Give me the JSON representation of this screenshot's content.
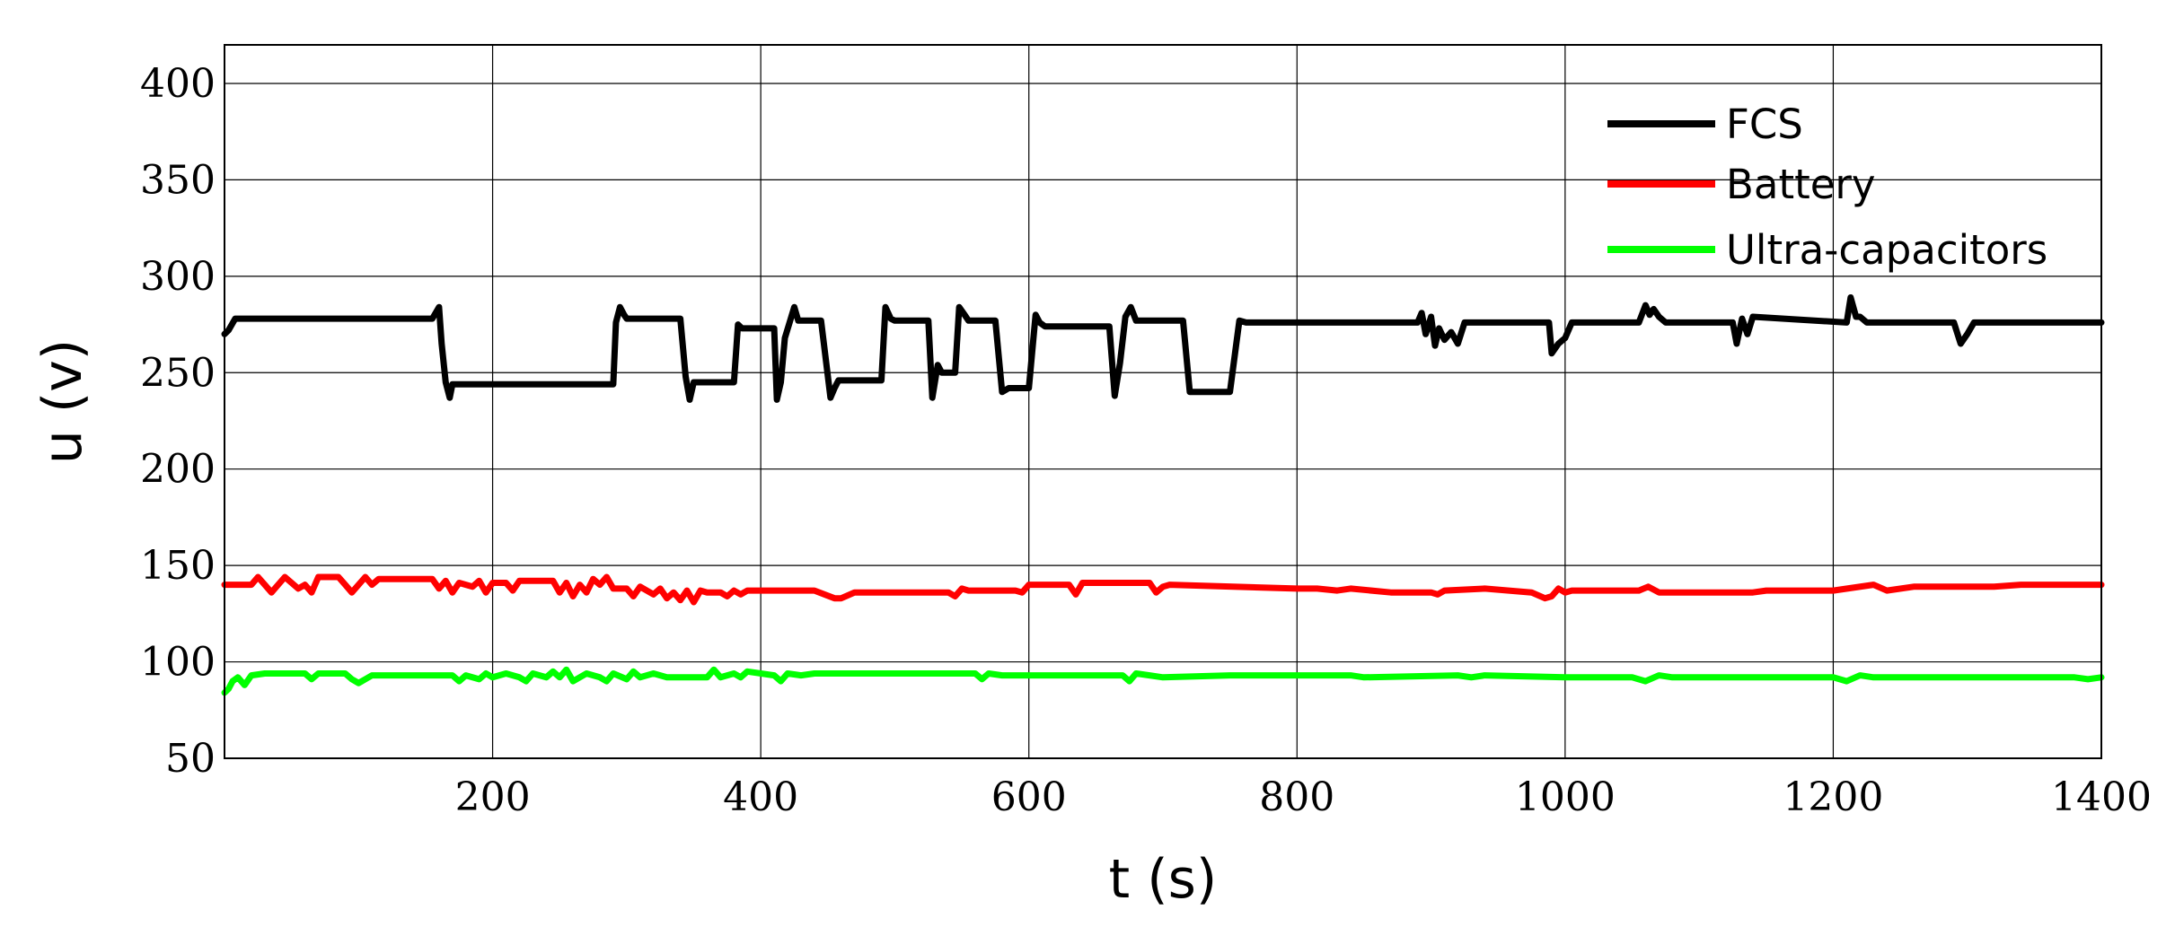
{
  "chart_data": {
    "type": "line",
    "title": "",
    "xlabel": "t (s)",
    "ylabel": "u (v)",
    "xlim": [
      0,
      1400
    ],
    "ylim": [
      50,
      420
    ],
    "x_ticks": [
      200,
      400,
      600,
      800,
      1000,
      1200,
      1400
    ],
    "y_ticks": [
      50,
      100,
      150,
      200,
      250,
      300,
      350,
      400
    ],
    "grid": true,
    "legend_position": "top-right",
    "series": [
      {
        "name": "FCS",
        "color": "#000000",
        "x": [
          0,
          3,
          8,
          155,
          160,
          162,
          165,
          168,
          170,
          290,
          292,
          295,
          298,
          300,
          340,
          344,
          347,
          350,
          380,
          383,
          386,
          410,
          412,
          415,
          418,
          425,
          428,
          445,
          452,
          455,
          458,
          490,
          493,
          497,
          500,
          525,
          528,
          532,
          535,
          545,
          548,
          552,
          555,
          575,
          580,
          585,
          600,
          605,
          608,
          612,
          660,
          664,
          668,
          672,
          676,
          680,
          715,
          720,
          725,
          750,
          757,
          762,
          890,
          893,
          896,
          900,
          903,
          906,
          910,
          915,
          920,
          925,
          988,
          990,
          995,
          1000,
          1005,
          1055,
          1060,
          1063,
          1066,
          1070,
          1075,
          1125,
          1128,
          1132,
          1136,
          1140,
          1210,
          1213,
          1217,
          1220,
          1225,
          1290,
          1295,
          1300,
          1305,
          1400
        ],
        "y": [
          270,
          272,
          278,
          278,
          284,
          265,
          245,
          237,
          244,
          244,
          276,
          284,
          280,
          278,
          278,
          248,
          236,
          245,
          245,
          275,
          273,
          273,
          236,
          245,
          268,
          284,
          277,
          277,
          237,
          242,
          246,
          246,
          284,
          278,
          277,
          277,
          237,
          254,
          250,
          250,
          284,
          280,
          277,
          277,
          240,
          242,
          242,
          280,
          276,
          274,
          274,
          238,
          255,
          279,
          284,
          277,
          277,
          240,
          240,
          240,
          277,
          276,
          276,
          281,
          270,
          279,
          264,
          273,
          267,
          271,
          265,
          276,
          276,
          260,
          265,
          268,
          276,
          276,
          285,
          280,
          283,
          279,
          276,
          276,
          265,
          278,
          270,
          279,
          276,
          289,
          279,
          279,
          276,
          276,
          265,
          270,
          276,
          276
        ]
      },
      {
        "name": "Battery",
        "color": "#ff0000",
        "x": [
          0,
          5,
          20,
          25,
          30,
          35,
          40,
          45,
          55,
          60,
          65,
          70,
          85,
          90,
          95,
          105,
          110,
          115,
          155,
          160,
          165,
          170,
          175,
          185,
          190,
          195,
          200,
          210,
          215,
          220,
          245,
          250,
          255,
          260,
          265,
          270,
          275,
          280,
          285,
          290,
          300,
          305,
          310,
          320,
          325,
          330,
          335,
          340,
          345,
          350,
          355,
          360,
          370,
          375,
          380,
          385,
          390,
          440,
          455,
          460,
          470,
          540,
          545,
          550,
          555,
          590,
          595,
          600,
          630,
          635,
          640,
          690,
          695,
          700,
          705,
          800,
          815,
          830,
          840,
          870,
          900,
          905,
          910,
          940,
          975,
          985,
          990,
          995,
          1000,
          1005,
          1055,
          1062,
          1070,
          1100,
          1140,
          1150,
          1200,
          1230,
          1240,
          1260,
          1300,
          1320,
          1340,
          1380,
          1400
        ],
        "y": [
          140,
          140,
          140,
          144,
          140,
          136,
          140,
          144,
          138,
          140,
          136,
          144,
          144,
          140,
          136,
          144,
          140,
          143,
          143,
          138,
          142,
          136,
          141,
          139,
          142,
          136,
          141,
          141,
          137,
          142,
          142,
          136,
          141,
          134,
          140,
          136,
          143,
          140,
          144,
          138,
          138,
          134,
          139,
          135,
          138,
          133,
          136,
          132,
          137,
          131,
          137,
          136,
          136,
          134,
          137,
          135,
          137,
          137,
          133,
          133,
          136,
          136,
          134,
          138,
          137,
          137,
          136,
          140,
          140,
          135,
          141,
          141,
          136,
          139,
          140,
          138,
          138,
          137,
          138,
          136,
          136,
          135,
          137,
          138,
          136,
          133,
          134,
          138,
          136,
          137,
          137,
          139,
          136,
          136,
          136,
          137,
          137,
          140,
          137,
          139,
          139,
          139,
          140,
          140,
          140
        ]
      },
      {
        "name": "Ultra-capacitors",
        "color": "#00ff00",
        "x": [
          0,
          3,
          6,
          10,
          15,
          20,
          30,
          60,
          65,
          70,
          90,
          95,
          100,
          105,
          110,
          170,
          175,
          180,
          190,
          195,
          200,
          210,
          220,
          225,
          230,
          240,
          245,
          250,
          255,
          260,
          270,
          280,
          285,
          290,
          300,
          305,
          310,
          320,
          330,
          360,
          365,
          370,
          380,
          385,
          390,
          410,
          415,
          420,
          430,
          440,
          560,
          565,
          570,
          580,
          600,
          670,
          675,
          680,
          690,
          700,
          750,
          840,
          850,
          920,
          930,
          940,
          1000,
          1050,
          1060,
          1070,
          1080,
          1200,
          1210,
          1220,
          1230,
          1380,
          1390,
          1400
        ],
        "y": [
          84,
          86,
          90,
          92,
          88,
          93,
          94,
          94,
          91,
          94,
          94,
          91,
          89,
          91,
          93,
          93,
          90,
          93,
          91,
          94,
          92,
          94,
          92,
          90,
          94,
          92,
          95,
          92,
          96,
          90,
          94,
          92,
          90,
          94,
          91,
          95,
          92,
          94,
          92,
          92,
          96,
          92,
          94,
          92,
          95,
          93,
          90,
          94,
          93,
          94,
          94,
          91,
          94,
          93,
          93,
          93,
          90,
          94,
          93,
          92,
          93,
          93,
          92,
          93,
          92,
          93,
          92,
          92,
          90,
          93,
          92,
          92,
          90,
          93,
          92,
          92,
          91,
          92
        ]
      }
    ]
  }
}
